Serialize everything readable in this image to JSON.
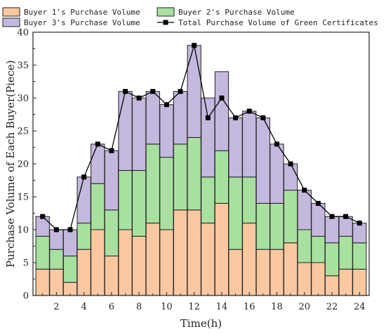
{
  "chart_data": {
    "type": "bar",
    "stacked": true,
    "x": [
      1,
      2,
      3,
      4,
      5,
      6,
      7,
      8,
      9,
      10,
      11,
      12,
      13,
      14,
      15,
      16,
      17,
      18,
      19,
      20,
      21,
      22,
      23,
      24
    ],
    "xticks": [
      "2",
      "4",
      "6",
      "8",
      "10",
      "12",
      "14",
      "16",
      "18",
      "20",
      "22",
      "24"
    ],
    "yticks": [
      "0",
      "5",
      "10",
      "15",
      "20",
      "25",
      "30",
      "35",
      "40"
    ],
    "xlabel": "Time(h)",
    "ylabel": "Purchase Volume of Each Buyer(Piece)",
    "xlim": [
      0.3,
      24.7
    ],
    "ylim": [
      0,
      40
    ],
    "legend_position": "top",
    "series": [
      {
        "name": "Buyer 1's Purchase Volume",
        "color": "#f9c8a0",
        "values": [
          4,
          4,
          2,
          7,
          10,
          6,
          10,
          9,
          11,
          10,
          13,
          13,
          11,
          14,
          7,
          11,
          7,
          7,
          8,
          5,
          5,
          3,
          4,
          4
        ]
      },
      {
        "name": "Buyer 2's Purchase Volume",
        "color": "#a8e0a0",
        "values": [
          5,
          3,
          4,
          4,
          7,
          7,
          9,
          10,
          12,
          11,
          10,
          11,
          7,
          8,
          11,
          7,
          7,
          7,
          8,
          5,
          4,
          5,
          5,
          4
        ]
      },
      {
        "name": "Buyer 3's Purchase Volume",
        "color": "#c5b8de",
        "values": [
          3,
          3,
          4,
          7,
          6,
          9,
          12,
          11,
          8,
          8,
          8,
          14,
          12,
          12,
          9,
          10,
          13,
          9,
          4,
          6,
          5,
          4,
          3,
          3
        ]
      }
    ],
    "line_series": {
      "name": "Total Purchase Volume of Green Certificates",
      "color": "#000000",
      "values": [
        12,
        10,
        10,
        18,
        23,
        22,
        31,
        30,
        31,
        29,
        31,
        38,
        27,
        30,
        27,
        28,
        27,
        23,
        20,
        16,
        14,
        12,
        12,
        11
      ]
    }
  }
}
